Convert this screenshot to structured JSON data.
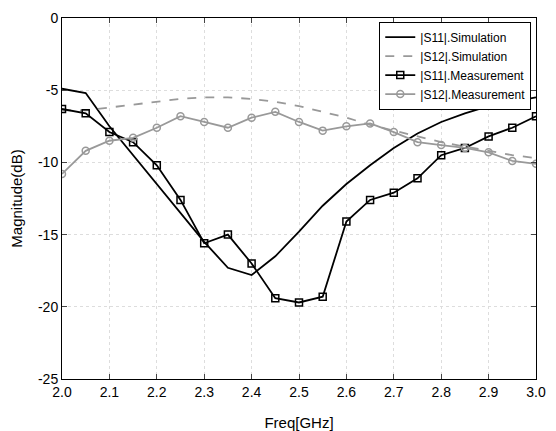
{
  "chart_data": {
    "type": "line",
    "x_label": "Freq[GHz]",
    "y_label": "Magnitude(dB)",
    "x": [
      2.0,
      2.05,
      2.1,
      2.15,
      2.2,
      2.25,
      2.3,
      2.35,
      2.4,
      2.45,
      2.5,
      2.55,
      2.6,
      2.65,
      2.7,
      2.75,
      2.8,
      2.85,
      2.9,
      2.95,
      3.0
    ],
    "series": [
      {
        "name": "|S11|.Simulation",
        "color": "#000000",
        "line_style": "solid",
        "marker": "none",
        "values": [
          -4.9,
          -5.2,
          -7.5,
          -9.5,
          -11.5,
          -13.5,
          -15.5,
          -17.3,
          -17.8,
          -16.5,
          -14.8,
          -13.0,
          -11.5,
          -10.2,
          -9.0,
          -8.0,
          -7.2,
          -6.6,
          -6.1,
          -5.8,
          -5.5
        ]
      },
      {
        "name": "|S12|.Simulation",
        "color": "#999999",
        "line_style": "dash",
        "marker": "none",
        "values": [
          -6.4,
          -6.4,
          -6.2,
          -6.0,
          -5.8,
          -5.6,
          -5.5,
          -5.5,
          -5.6,
          -5.8,
          -6.1,
          -6.5,
          -6.9,
          -7.4,
          -7.8,
          -8.2,
          -8.6,
          -8.9,
          -9.2,
          -9.5,
          -9.7
        ]
      },
      {
        "name": "|S11|.Measurement",
        "color": "#000000",
        "line_style": "solid",
        "marker": "square",
        "values": [
          -6.3,
          -6.6,
          -7.9,
          -8.6,
          -10.2,
          -12.6,
          -15.6,
          -15.0,
          -17.0,
          -19.4,
          -19.7,
          -19.3,
          -14.1,
          -12.6,
          -12.1,
          -11.1,
          -9.5,
          -9.0,
          -8.2,
          -7.6,
          -6.8
        ]
      },
      {
        "name": "|S12|.Measurement",
        "color": "#999999",
        "line_style": "solid",
        "marker": "circle",
        "values": [
          -10.8,
          -9.2,
          -8.5,
          -8.3,
          -7.6,
          -6.8,
          -7.2,
          -7.6,
          -6.9,
          -6.5,
          -7.2,
          -7.8,
          -7.5,
          -7.3,
          -7.9,
          -8.6,
          -8.8,
          -9.0,
          -9.3,
          -9.9,
          -10.1
        ]
      }
    ],
    "xlim": [
      2.0,
      3.0
    ],
    "xticks": [
      {
        "value": 2.0,
        "label": "2.0"
      },
      2.1,
      2.2,
      2.3,
      2.4,
      2.5,
      2.6,
      2.7,
      2.8,
      2.9,
      {
        "value": 3.0,
        "label": "3.0"
      }
    ],
    "ylim": [
      -25,
      0
    ],
    "yticks": [
      -25,
      -20,
      -15,
      -10,
      -5,
      0
    ],
    "grid": true,
    "legend": "top right"
  }
}
